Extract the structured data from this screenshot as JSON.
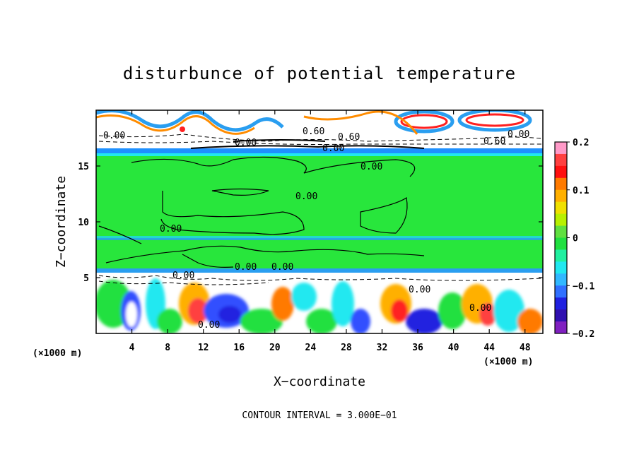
{
  "chart_data": {
    "type": "heatmap",
    "title": "disturbunce of potential temperature",
    "xlabel": "X−coordinate",
    "ylabel": "Z−coordinate",
    "x_unit_left": "(×1000 m)",
    "x_unit_right": "(×1000 m)",
    "xlim": [
      0,
      50
    ],
    "ylim": [
      0,
      20
    ],
    "x_ticks": [
      4,
      8,
      12,
      16,
      20,
      24,
      28,
      32,
      36,
      40,
      44,
      48
    ],
    "y_ticks": [
      5,
      10,
      15
    ],
    "colorbar": {
      "range": [
        -0.2,
        0.2
      ],
      "tick_labels": [
        "0.2",
        "0.1",
        "0",
        "−0.1",
        "−0.2"
      ],
      "tick_values": [
        0.2,
        0.1,
        0,
        -0.1,
        -0.2
      ],
      "colors": [
        "#ff9ac8",
        "#ff4040",
        "#ff1010",
        "#ff7a00",
        "#ffb000",
        "#f0e000",
        "#b8f000",
        "#60e040",
        "#20e040",
        "#20f0a0",
        "#20e8f0",
        "#30b8ff",
        "#3070ff",
        "#2020e0",
        "#3010b0",
        "#8020c0"
      ]
    },
    "contour_labels": [
      "0.00",
      "0.60",
      "0.60",
      "0.00",
      "0.60",
      "0.00",
      "0.00",
      "0.00",
      "0.00",
      "0.00",
      "0.00",
      "0.00",
      "0.00",
      "0.00",
      "0.00",
      "0.00"
    ],
    "grid": false,
    "contour_interval_text": "CONTOUR INTERVAL = 3.000E−01"
  }
}
